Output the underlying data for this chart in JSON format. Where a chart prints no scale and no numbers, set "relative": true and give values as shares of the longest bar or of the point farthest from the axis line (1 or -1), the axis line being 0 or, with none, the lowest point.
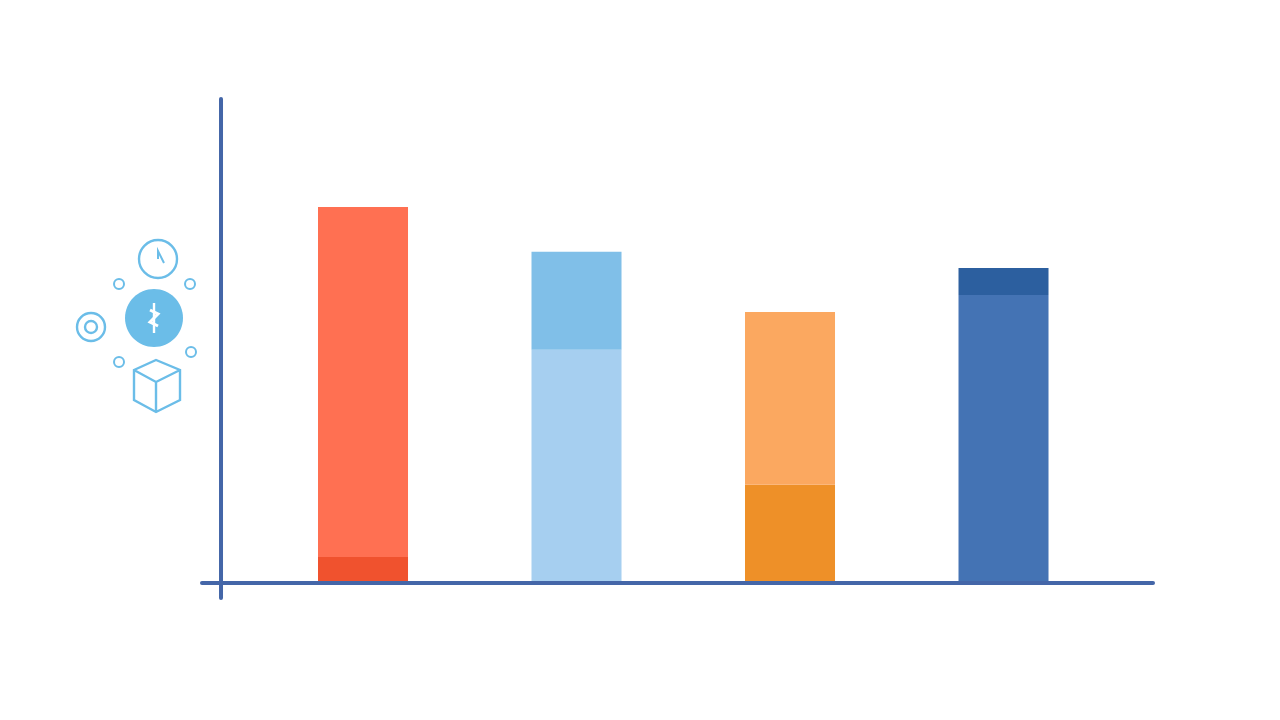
{
  "chart_data": {
    "type": "bar",
    "stacked": true,
    "relative": true,
    "categories": [
      null,
      null,
      null,
      null
    ],
    "series": [
      {
        "colors": [
          "#f0522e",
          "#a6cff0",
          "#ee9028",
          "#4473b4"
        ],
        "values": [
          0.069,
          0.62,
          0.261,
          0.766
        ]
      },
      {
        "colors": [
          "#ff7052",
          "#80bfe8",
          "#fba860",
          "#2c5f9f"
        ],
        "values": [
          0.931,
          0.261,
          0.46,
          0.072
        ]
      }
    ]
  }
}
